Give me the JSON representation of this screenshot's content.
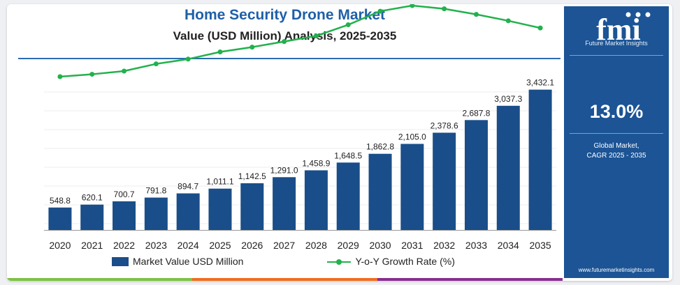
{
  "chart_title": "Home Security Drone Market",
  "chart_subtitle": "Value (USD Million) Analysis, 2025-2035",
  "colors": {
    "bar": "#1a4e8a",
    "line": "#22b14c",
    "title": "#1f5fa8",
    "side_panel": "#1c5495",
    "strip": [
      "#7dc242",
      "#f26b1d",
      "#8a2c8f"
    ]
  },
  "chart_data": {
    "type": "bar",
    "categories": [
      "2020",
      "2021",
      "2022",
      "2023",
      "2024",
      "2025",
      "2026",
      "2027",
      "2028",
      "2029",
      "2030",
      "2031",
      "2032",
      "2033",
      "2034",
      "2035"
    ],
    "series": [
      {
        "name": "Market Value USD Million",
        "type": "bar",
        "values": [
          548.8,
          620.1,
          700.7,
          791.8,
          894.7,
          1011.1,
          1142.5,
          1291.0,
          1458.9,
          1648.5,
          1862.8,
          2105.0,
          2378.6,
          2687.8,
          3037.3,
          3432.1
        ]
      },
      {
        "name": "Y-o-Y Growth Rate (%)",
        "type": "line",
        "values": [
          11.0,
          11.3,
          11.7,
          12.6,
          13.2,
          14.1,
          14.7,
          15.4,
          16.1,
          17.5,
          19.2,
          19.9,
          19.5,
          18.8,
          18.0,
          17.1
        ]
      }
    ],
    "value_labels": [
      "548.8",
      "620.1",
      "700.7",
      "791.8",
      "894.7",
      "1,011.1",
      "1,142.5",
      "1,291.0",
      "1,458.9",
      "1,648.5",
      "1,862.8",
      "2,105.0",
      "2,378.6",
      "2,687.8",
      "3,037.3",
      "3,432.1"
    ],
    "ylim": [
      0,
      3750
    ],
    "growth_ylim": [
      0,
      22
    ],
    "grid": true,
    "legend_position": "bottom-center"
  },
  "legend": {
    "bar_label": "Market Value USD Million",
    "line_label": "Y-o-Y Growth Rate (%)"
  },
  "side_panel": {
    "logo_text": "fmi",
    "logo_caption": "Future Market Insights",
    "cagr_value": "13.0%",
    "cagr_label_line1": "Global Market,",
    "cagr_label_line2": "CAGR 2025 - 2035",
    "website": "www.futuremarketinsights.com"
  }
}
